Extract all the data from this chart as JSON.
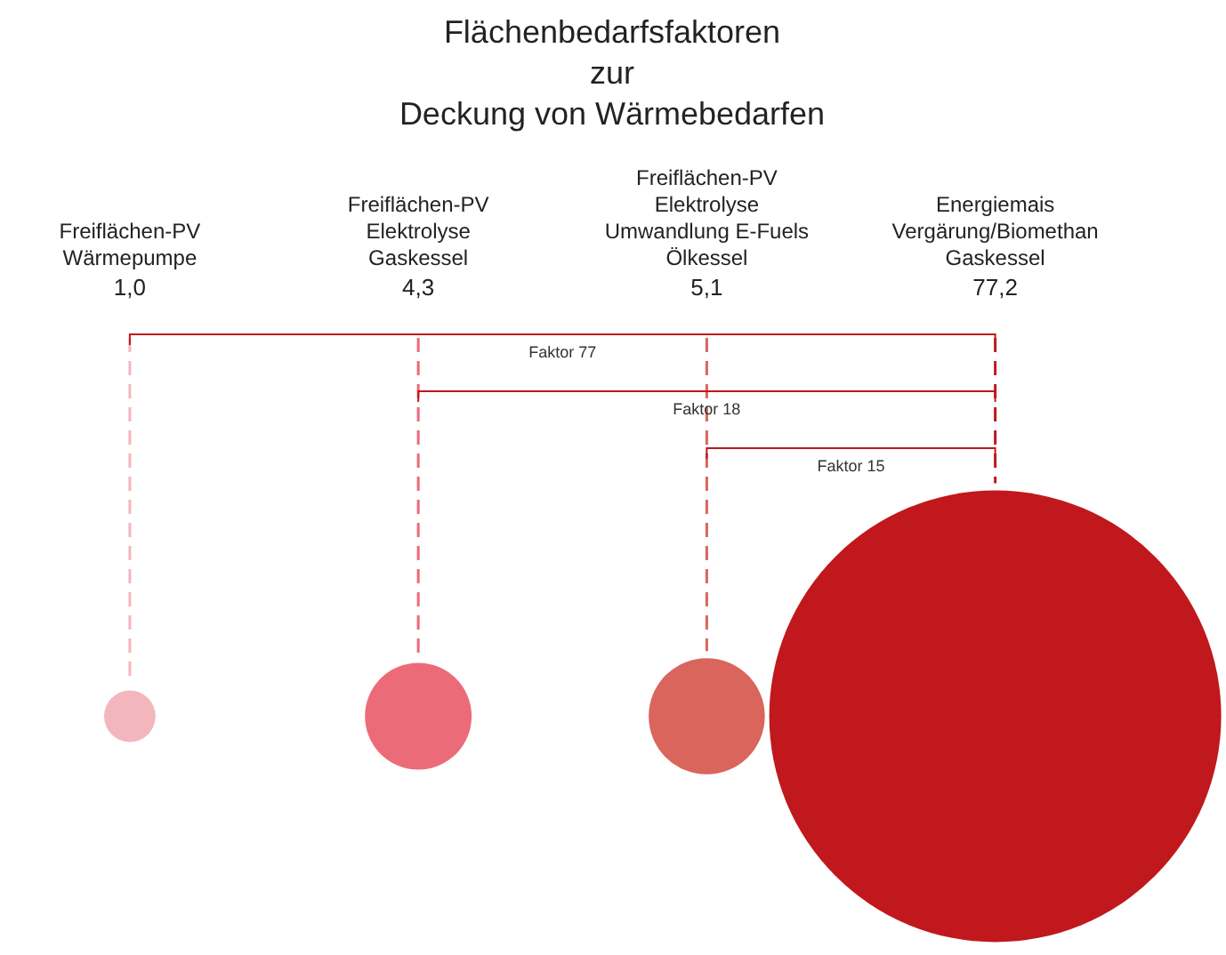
{
  "chart_data": {
    "type": "other",
    "title": "Flächenbedarfsfaktoren\nzur\nDeckung von Wärmebedarfen",
    "categories": [
      "Freiflächen-PV\nWärmepumpe",
      "Freiflächen-PV\nElektrolyse\nGaskessel",
      "Freiflächen-PV\nElektrolyse\nUmwandlung E-Fuels\nÖlkessel",
      "Energiemais\nVergärung/Biomethan\nGaskessel"
    ],
    "values": [
      1.0,
      4.3,
      5.1,
      77.2
    ],
    "value_labels": [
      "1,0",
      "4,3",
      "5,1",
      "77,2"
    ],
    "colors": [
      "#f4b6bd",
      "#ec6b78",
      "#d9655c",
      "#c0181c"
    ],
    "annotations": [
      "Faktor 77",
      "Faktor 18",
      "Faktor 15"
    ],
    "legend": false
  }
}
